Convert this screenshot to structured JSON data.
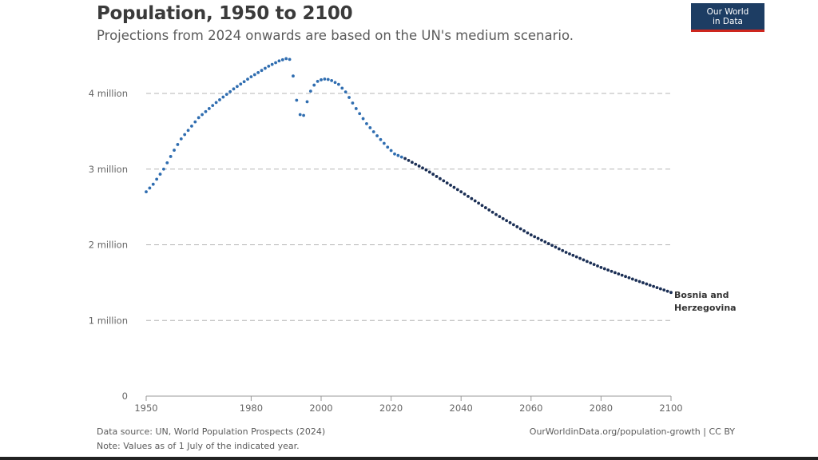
{
  "header": {
    "title": "Population, 1950 to 2100",
    "subtitle": "Projections from 2024 onwards are based on the UN's medium scenario."
  },
  "logo": {
    "line1": "Our World",
    "line2": "in Data"
  },
  "footer": {
    "source": "Data source:  UN, World Population Prospects (2024)",
    "note": "Note:  Values as of 1 July of the indicated year.",
    "url": "OurWorldinData.org/population-growth | CC BY"
  },
  "colors": {
    "historical": "#2f6db0",
    "projection": "#1b2f55",
    "grid": "#b5b5b5"
  },
  "chart_data": {
    "type": "scatter",
    "title": "Population, 1950 to 2100",
    "subtitle": "Projections from 2024 onwards are based on the UN's medium scenario.",
    "xlabel": "",
    "ylabel": "",
    "xlim": [
      1950,
      2100
    ],
    "ylim": [
      0,
      4600000
    ],
    "x_ticks": [
      1950,
      1980,
      2000,
      2020,
      2040,
      2060,
      2080,
      2100
    ],
    "y_ticks": [
      {
        "value": 0,
        "label": "0"
      },
      {
        "value": 1000000,
        "label": "1 million"
      },
      {
        "value": 2000000,
        "label": "2 million"
      },
      {
        "value": 3000000,
        "label": "3 million"
      },
      {
        "value": 4000000,
        "label": "4 million"
      }
    ],
    "grid": "horizontal dashed",
    "projection_start": 2024,
    "series": [
      {
        "name": "Bosnia and Herzegovina",
        "label_lines": [
          "Bosnia and",
          "Herzegovina"
        ],
        "anchors": [
          [
            1950,
            2700000
          ],
          [
            1952,
            2800000
          ],
          [
            1955,
            3000000
          ],
          [
            1958,
            3250000
          ],
          [
            1960,
            3400000
          ],
          [
            1965,
            3680000
          ],
          [
            1970,
            3880000
          ],
          [
            1975,
            4060000
          ],
          [
            1980,
            4220000
          ],
          [
            1985,
            4360000
          ],
          [
            1988,
            4430000
          ],
          [
            1990,
            4460000
          ],
          [
            1991,
            4450000
          ],
          [
            1992,
            4230000
          ],
          [
            1993,
            3910000
          ],
          [
            1994,
            3720000
          ],
          [
            1995,
            3710000
          ],
          [
            1996,
            3890000
          ],
          [
            1997,
            4030000
          ],
          [
            1998,
            4110000
          ],
          [
            1999,
            4160000
          ],
          [
            2000,
            4180000
          ],
          [
            2001,
            4190000
          ],
          [
            2002,
            4185000
          ],
          [
            2003,
            4170000
          ],
          [
            2005,
            4120000
          ],
          [
            2007,
            4020000
          ],
          [
            2010,
            3800000
          ],
          [
            2013,
            3600000
          ],
          [
            2016,
            3440000
          ],
          [
            2019,
            3290000
          ],
          [
            2021,
            3200000
          ],
          [
            2024,
            3140000
          ],
          [
            2030,
            2990000
          ],
          [
            2040,
            2700000
          ],
          [
            2050,
            2400000
          ],
          [
            2060,
            2130000
          ],
          [
            2070,
            1900000
          ],
          [
            2080,
            1700000
          ],
          [
            2090,
            1530000
          ],
          [
            2100,
            1370000
          ]
        ]
      }
    ]
  }
}
